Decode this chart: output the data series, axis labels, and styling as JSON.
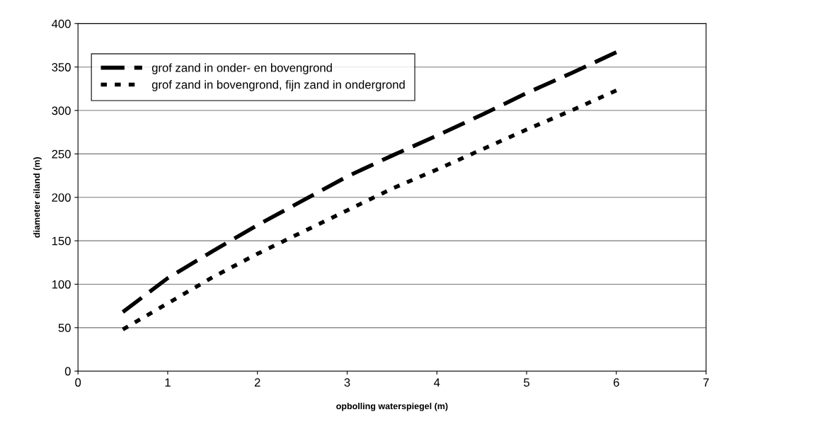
{
  "chart_data": {
    "type": "line",
    "xlabel": "opbolling waterspiegel (m)",
    "ylabel": "diameter eiland (m)",
    "x": [
      0.5,
      1,
      1.5,
      2,
      2.5,
      3,
      3.5,
      4,
      4.5,
      5,
      5.5,
      6
    ],
    "series": [
      {
        "name": "grof zand in onder- en bovengrond",
        "color": "#000000",
        "line_style": "dashed",
        "values": [
          68,
          107,
          138,
          168,
          196,
          224,
          248,
          271,
          295,
          320,
          343,
          367
        ]
      },
      {
        "name": "grof zand in bovengrond, fijn zand in ondergrond",
        "color": "#000000",
        "line_style": "dotted",
        "values": [
          48,
          78,
          108,
          135,
          160,
          185,
          210,
          232,
          255,
          278,
          300,
          323
        ]
      }
    ],
    "xlim": [
      0,
      7
    ],
    "xticks": [
      0,
      1,
      2,
      3,
      4,
      5,
      6,
      7
    ],
    "ylim": [
      0,
      400
    ],
    "yticks": [
      0,
      50,
      100,
      150,
      200,
      250,
      300,
      350,
      400
    ],
    "grid": "y",
    "legend": "top left",
    "marker": "none"
  }
}
